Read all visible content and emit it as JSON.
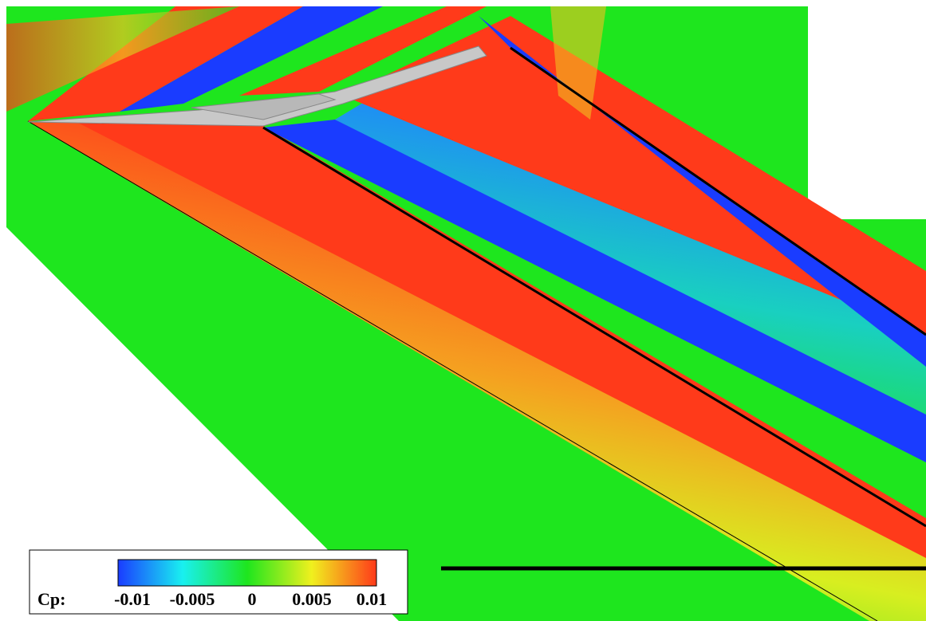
{
  "legend": {
    "label": "Cp:",
    "ticks": [
      -0.01,
      -0.005,
      0,
      0.005,
      0.01
    ]
  }
}
